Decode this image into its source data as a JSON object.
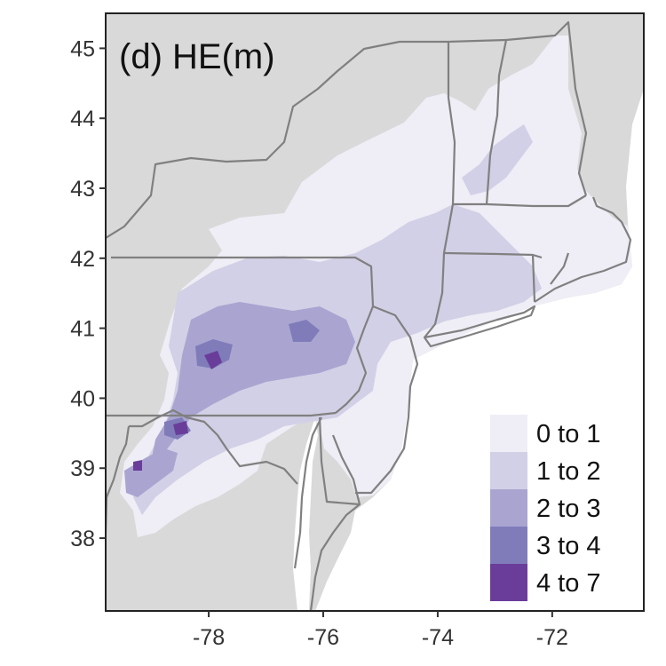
{
  "panel_title": "(d) HE(m)",
  "map_data": {
    "lon_range": [
      -79.8,
      -70.4
    ],
    "lat_range": [
      36.96,
      45.5
    ],
    "x_ticks": [
      {
        "value": -78,
        "label": "-78"
      },
      {
        "value": -76,
        "label": "-76"
      },
      {
        "value": -74,
        "label": "-74"
      },
      {
        "value": -72,
        "label": "-72"
      }
    ],
    "y_ticks": [
      {
        "value": 45,
        "label": "45"
      },
      {
        "value": 44,
        "label": "44"
      },
      {
        "value": 43,
        "label": "43"
      },
      {
        "value": 42,
        "label": "42"
      },
      {
        "value": 41,
        "label": "41"
      },
      {
        "value": 40,
        "label": "40"
      },
      {
        "value": 39,
        "label": "39"
      },
      {
        "value": 38,
        "label": "38"
      }
    ]
  },
  "legend": {
    "classes": [
      {
        "label": "0 to 1",
        "color": "#efedf5"
      },
      {
        "label": "1 to 2",
        "color": "#d2d0e6"
      },
      {
        "label": "2 to 3",
        "color": "#a9a5d0"
      },
      {
        "label": "3 to 4",
        "color": "#807cba"
      },
      {
        "label": "4 to 7",
        "color": "#6a3d9a"
      }
    ]
  },
  "colors": {
    "background": "#d9d9d9",
    "border": "#808080",
    "water": "#ffffff"
  }
}
